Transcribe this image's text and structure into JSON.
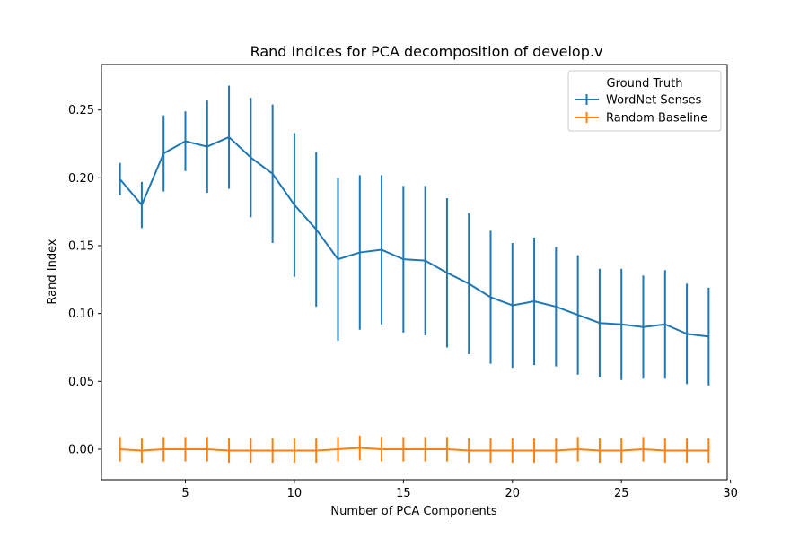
{
  "chart_data": {
    "type": "line",
    "title": "Rand Indices for PCA decomposition of develop.v",
    "xlabel": "Number of PCA Components",
    "ylabel": "Rand Index",
    "xlim": [
      1.15,
      29.85
    ],
    "ylim": [
      -0.0225,
      0.2835
    ],
    "xticks": [
      5,
      10,
      15,
      20,
      25,
      30
    ],
    "xtick_labels": [
      "5",
      "10",
      "15",
      "20",
      "25",
      "30"
    ],
    "yticks": [
      0.0,
      0.05,
      0.1,
      0.15,
      0.2,
      0.25
    ],
    "ytick_labels": [
      "0.00",
      "0.05",
      "0.10",
      "0.15",
      "0.20",
      "0.25"
    ],
    "grid": false,
    "legend": {
      "title": "Ground Truth",
      "placement": "top-right"
    },
    "x": [
      2,
      3,
      4,
      5,
      6,
      7,
      8,
      9,
      10,
      11,
      12,
      13,
      14,
      15,
      16,
      17,
      18,
      19,
      20,
      21,
      22,
      23,
      24,
      25,
      26,
      27,
      28,
      29
    ],
    "series": [
      {
        "name": "WordNet Senses",
        "color": "#1f77b4",
        "values": [
          0.199,
          0.18,
          0.218,
          0.227,
          0.223,
          0.23,
          0.215,
          0.203,
          0.18,
          0.162,
          0.14,
          0.145,
          0.147,
          0.14,
          0.139,
          0.13,
          0.122,
          0.112,
          0.106,
          0.109,
          0.105,
          0.099,
          0.093,
          0.092,
          0.09,
          0.092,
          0.085,
          0.083
        ],
        "errors": [
          0.012,
          0.017,
          0.028,
          0.022,
          0.034,
          0.038,
          0.044,
          0.051,
          0.053,
          0.057,
          0.06,
          0.057,
          0.055,
          0.054,
          0.055,
          0.055,
          0.052,
          0.049,
          0.046,
          0.047,
          0.044,
          0.044,
          0.04,
          0.041,
          0.038,
          0.04,
          0.037,
          0.036
        ]
      },
      {
        "name": "Random Baseline",
        "color": "#ff7f0e",
        "values": [
          0.0,
          -0.001,
          0.0,
          0.0,
          0.0,
          -0.001,
          -0.001,
          -0.001,
          -0.001,
          -0.001,
          0.0,
          0.001,
          0.0,
          0.0,
          0.0,
          0.0,
          -0.001,
          -0.001,
          -0.001,
          -0.001,
          -0.001,
          0.0,
          -0.001,
          -0.001,
          0.0,
          -0.001,
          -0.001,
          -0.001
        ],
        "errors": [
          0.009,
          0.009,
          0.009,
          0.009,
          0.009,
          0.009,
          0.009,
          0.009,
          0.009,
          0.009,
          0.009,
          0.009,
          0.009,
          0.009,
          0.009,
          0.009,
          0.009,
          0.009,
          0.009,
          0.009,
          0.009,
          0.009,
          0.009,
          0.009,
          0.009,
          0.009,
          0.009,
          0.009
        ]
      }
    ]
  }
}
